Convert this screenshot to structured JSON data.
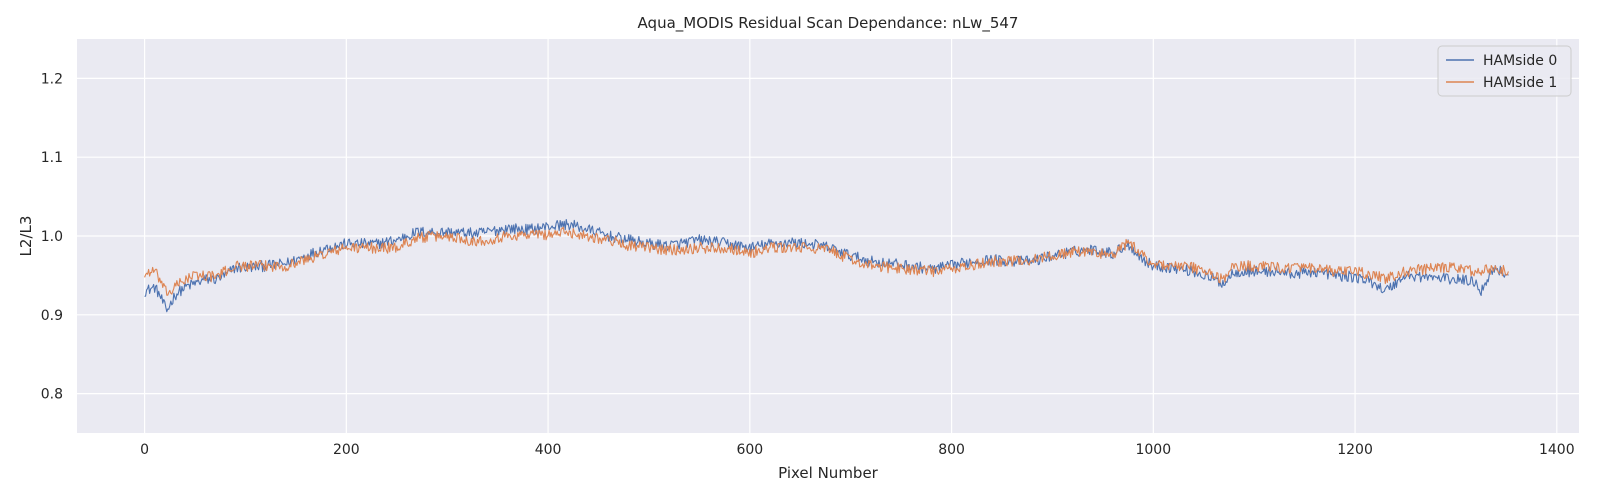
{
  "chart_data": {
    "type": "line",
    "title": "Aqua_MODIS Residual Scan Dependance: nLw_547",
    "xlabel": "Pixel Number",
    "ylabel": "L2/L3",
    "xlim": [
      -67,
      1422
    ],
    "ylim": [
      0.75,
      1.25
    ],
    "xticks": [
      0,
      200,
      400,
      600,
      800,
      1000,
      1200,
      1400
    ],
    "yticks": [
      0.8,
      0.9,
      1.0,
      1.1,
      1.2
    ],
    "xtick_labels": [
      "0",
      "200",
      "400",
      "600",
      "800",
      "1000",
      "1200",
      "1400"
    ],
    "ytick_labels": [
      "0.8",
      "0.9",
      "1.0",
      "1.1",
      "1.2"
    ],
    "grid": true,
    "legend_position": "top-right",
    "background_color": "#eaeaf2",
    "series": [
      {
        "name": "HAMside 0",
        "color": "#4c72b0",
        "x": [
          0,
          10,
          15,
          20,
          22,
          30,
          40,
          50,
          60,
          70,
          80,
          90,
          100,
          120,
          140,
          160,
          180,
          200,
          230,
          250,
          270,
          300,
          330,
          360,
          380,
          400,
          420,
          440,
          460,
          480,
          500,
          520,
          550,
          580,
          600,
          620,
          640,
          660,
          680,
          700,
          720,
          740,
          760,
          780,
          800,
          820,
          840,
          860,
          880,
          900,
          920,
          940,
          960,
          975,
          990,
          1000,
          1020,
          1040,
          1060,
          1070,
          1080,
          1100,
          1120,
          1140,
          1160,
          1180,
          1200,
          1220,
          1230,
          1250,
          1270,
          1300,
          1320,
          1325,
          1335,
          1340,
          1345,
          1352
        ],
        "y": [
          0.93,
          0.935,
          0.925,
          0.91,
          0.905,
          0.925,
          0.935,
          0.94,
          0.945,
          0.945,
          0.95,
          0.96,
          0.96,
          0.962,
          0.965,
          0.975,
          0.985,
          0.99,
          0.99,
          0.995,
          1.005,
          1.005,
          1.003,
          1.01,
          1.008,
          1.012,
          1.015,
          1.008,
          1.0,
          0.995,
          0.99,
          0.988,
          0.995,
          0.99,
          0.985,
          0.99,
          0.992,
          0.99,
          0.985,
          0.975,
          0.968,
          0.965,
          0.962,
          0.958,
          0.962,
          0.968,
          0.97,
          0.968,
          0.968,
          0.975,
          0.98,
          0.983,
          0.978,
          0.99,
          0.97,
          0.962,
          0.96,
          0.955,
          0.945,
          0.94,
          0.955,
          0.955,
          0.955,
          0.952,
          0.955,
          0.95,
          0.948,
          0.94,
          0.93,
          0.95,
          0.948,
          0.945,
          0.942,
          0.93,
          0.955,
          0.96,
          0.955,
          0.95
        ]
      },
      {
        "name": "HAMside 1",
        "color": "#dd8452",
        "x": [
          0,
          5,
          10,
          15,
          20,
          25,
          30,
          40,
          50,
          60,
          70,
          80,
          90,
          100,
          120,
          140,
          160,
          180,
          200,
          230,
          250,
          270,
          300,
          330,
          360,
          380,
          400,
          420,
          440,
          460,
          480,
          500,
          520,
          550,
          580,
          600,
          620,
          640,
          660,
          680,
          700,
          720,
          740,
          760,
          780,
          800,
          820,
          840,
          860,
          880,
          900,
          920,
          940,
          960,
          975,
          990,
          1000,
          1020,
          1040,
          1060,
          1070,
          1080,
          1100,
          1120,
          1140,
          1160,
          1180,
          1200,
          1220,
          1230,
          1250,
          1270,
          1300,
          1320,
          1340,
          1352
        ],
        "y": [
          0.95,
          0.955,
          0.955,
          0.945,
          0.93,
          0.928,
          0.935,
          0.945,
          0.95,
          0.95,
          0.948,
          0.955,
          0.962,
          0.962,
          0.962,
          0.962,
          0.97,
          0.978,
          0.985,
          0.985,
          0.985,
          0.998,
          1.0,
          0.993,
          1.0,
          1.002,
          1.002,
          1.005,
          1.0,
          0.995,
          0.988,
          0.985,
          0.982,
          0.985,
          0.985,
          0.978,
          0.985,
          0.985,
          0.985,
          0.982,
          0.97,
          0.962,
          0.96,
          0.958,
          0.955,
          0.958,
          0.962,
          0.968,
          0.968,
          0.97,
          0.975,
          0.98,
          0.98,
          0.975,
          0.992,
          0.975,
          0.965,
          0.962,
          0.96,
          0.95,
          0.945,
          0.962,
          0.962,
          0.96,
          0.96,
          0.958,
          0.955,
          0.955,
          0.95,
          0.945,
          0.955,
          0.958,
          0.96,
          0.955,
          0.958,
          0.955
        ]
      }
    ]
  }
}
